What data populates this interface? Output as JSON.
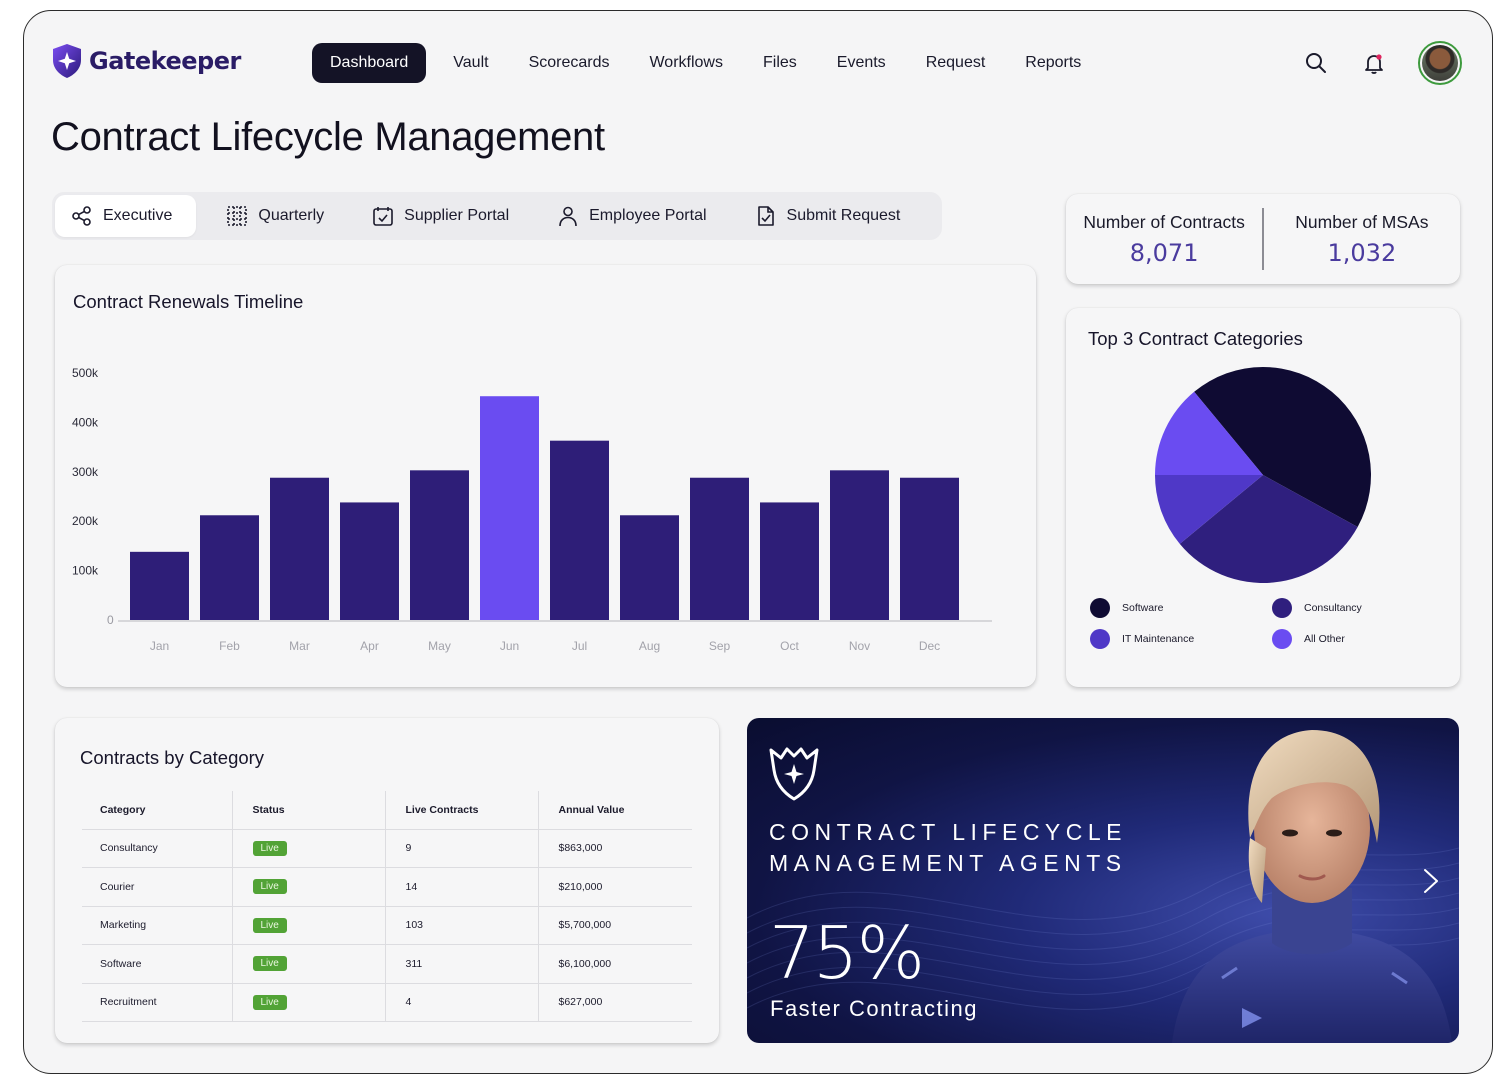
{
  "brand": {
    "name": "Gatekeeper"
  },
  "nav": {
    "items": [
      "Dashboard",
      "Vault",
      "Scorecards",
      "Workflows",
      "Files",
      "Events",
      "Request",
      "Reports"
    ],
    "active": "Dashboard",
    "icons": [
      "search-icon",
      "bell-icon"
    ]
  },
  "page": {
    "title": "Contract Lifecycle Management"
  },
  "tabs": [
    {
      "label": "Executive",
      "icon": "share-icon",
      "active": true
    },
    {
      "label": "Quarterly",
      "icon": "grid-icon",
      "active": false
    },
    {
      "label": "Supplier Portal",
      "icon": "calendar-check-icon",
      "active": false
    },
    {
      "label": "Employee Portal",
      "icon": "person-icon",
      "active": false
    },
    {
      "label": "Submit Request",
      "icon": "document-check-icon",
      "active": false
    }
  ],
  "stats": {
    "contracts_label": "Number of Contracts",
    "contracts_value": "8,071",
    "msas_label": "Number of MSAs",
    "msas_value": "1,032"
  },
  "renewals": {
    "title": "Contract Renewals Timeline"
  },
  "chart_data": [
    {
      "type": "bar",
      "title": "Contract Renewals Timeline",
      "categories": [
        "Jan",
        "Feb",
        "Mar",
        "Apr",
        "May",
        "Jun",
        "Jul",
        "Aug",
        "Sep",
        "Oct",
        "Nov",
        "Dec"
      ],
      "values": [
        138000,
        212000,
        288000,
        238000,
        303000,
        453000,
        363000,
        212000,
        288000,
        238000,
        303000,
        288000
      ],
      "highlight": "Jun",
      "yticks": [
        "0",
        "100k",
        "200k",
        "300k",
        "400k",
        "500k"
      ],
      "ylim": [
        0,
        500000
      ],
      "colors": {
        "bar": "#2e1e78",
        "highlight": "#6a4cf1"
      },
      "grid": false
    },
    {
      "type": "pie",
      "title": "Top 3 Contract Categories",
      "labels": [
        "Software",
        "Consultancy",
        "IT Maintenance",
        "All Other"
      ],
      "values": [
        44,
        31,
        11,
        14
      ],
      "colors": [
        "#0f0b33",
        "#2f1f7e",
        "#4f38c7",
        "#6a4cf1"
      ],
      "legend": "bottom"
    }
  ],
  "top_categories": {
    "title": "Top 3 Contract Categories"
  },
  "by_category": {
    "title": "Contracts by Category",
    "columns": [
      "Category",
      "Status",
      "Live Contracts",
      "Annual Value"
    ],
    "rows": [
      [
        "Consultancy",
        "Live",
        "9",
        "$863,000"
      ],
      [
        "Courier",
        "Live",
        "14",
        "$210,000"
      ],
      [
        "Marketing",
        "Live",
        "103",
        "$5,700,000"
      ],
      [
        "Software",
        "Live",
        "311",
        "$6,100,000"
      ],
      [
        "Recruitment",
        "Live",
        "4",
        "$627,000"
      ]
    ]
  },
  "promo": {
    "line1": "CONTRACT LIFECYCLE",
    "line2": "MANAGEMENT AGENTS",
    "stat": "75%",
    "sub": "Faster Contracting"
  }
}
